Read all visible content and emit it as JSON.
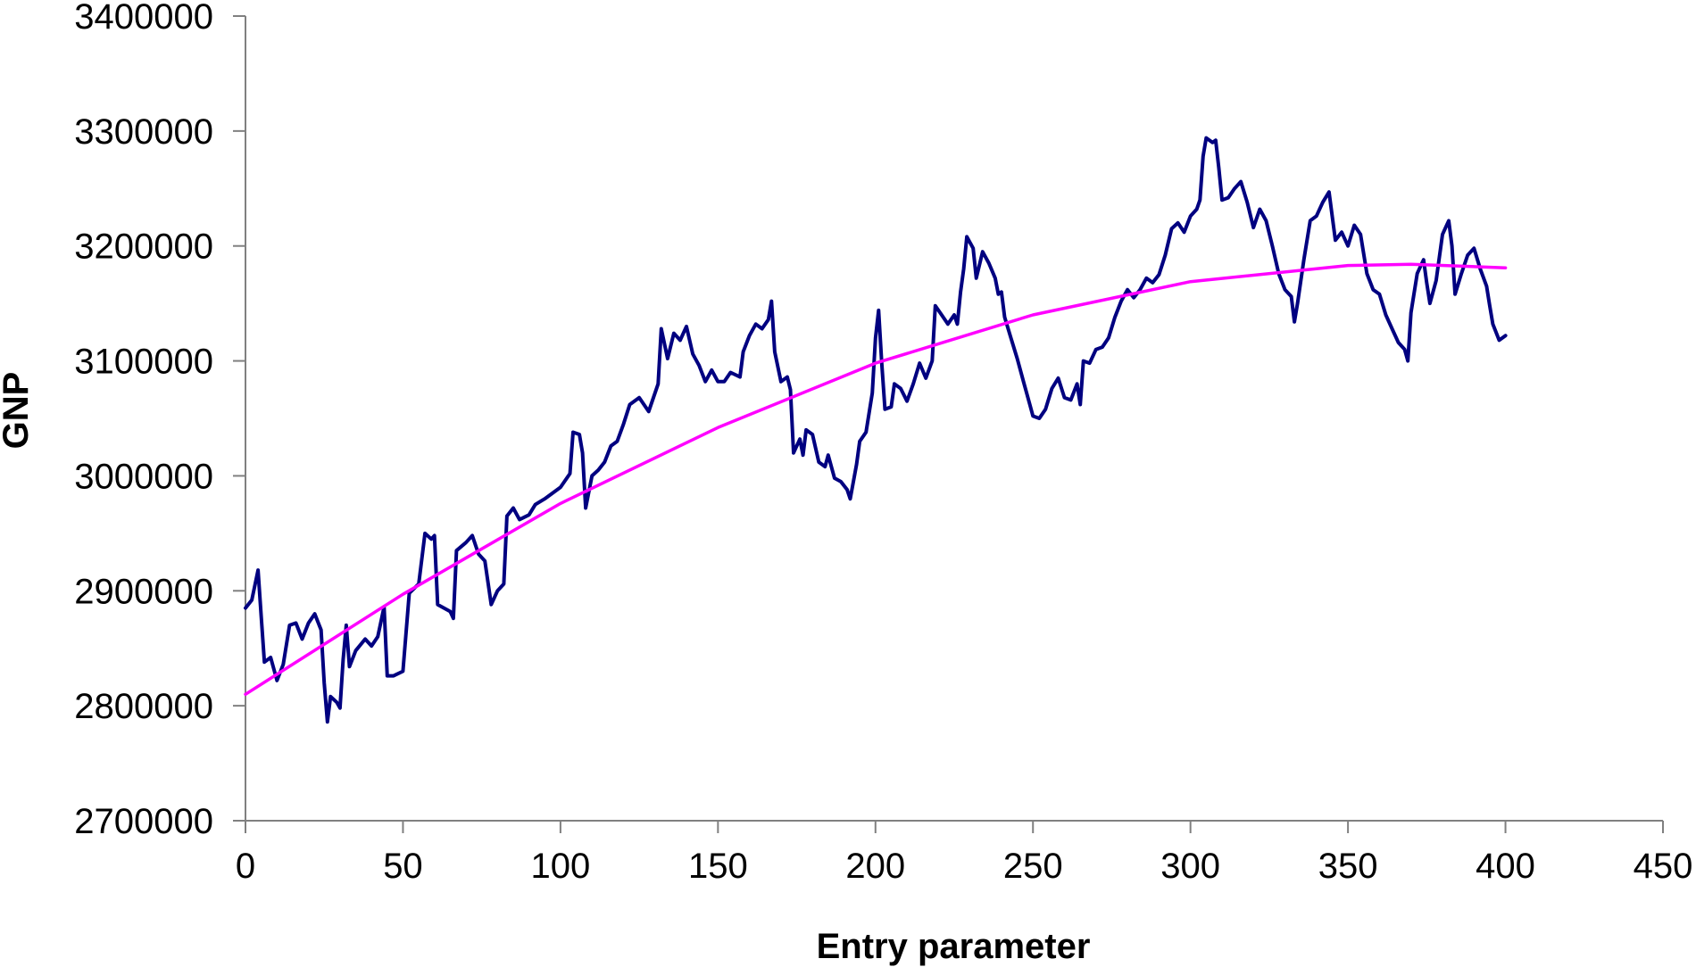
{
  "chart_data": {
    "type": "line",
    "title": "",
    "xlabel": "Entry parameter",
    "ylabel": "GNP",
    "xlim": [
      0,
      450
    ],
    "ylim": [
      2700000,
      3400000
    ],
    "x_ticks": [
      "0",
      "50",
      "100",
      "150",
      "200",
      "250",
      "300",
      "350",
      "400",
      "450"
    ],
    "y_ticks": [
      "2700000",
      "2800000",
      "2900000",
      "3000000",
      "3100000",
      "3200000",
      "3300000",
      "3400000"
    ],
    "grid": false,
    "legend": "none",
    "series": [
      {
        "color": "#000080",
        "style": "line",
        "points": [
          [
            0,
            2885000
          ],
          [
            2,
            2892000
          ],
          [
            4,
            2918000
          ],
          [
            5,
            2878000
          ],
          [
            6,
            2838000
          ],
          [
            8,
            2842000
          ],
          [
            10,
            2822000
          ],
          [
            12,
            2836000
          ],
          [
            14,
            2870000
          ],
          [
            16,
            2872000
          ],
          [
            18,
            2858000
          ],
          [
            20,
            2872000
          ],
          [
            22,
            2880000
          ],
          [
            24,
            2866000
          ],
          [
            25,
            2820000
          ],
          [
            26,
            2786000
          ],
          [
            27,
            2808000
          ],
          [
            29,
            2803000
          ],
          [
            30,
            2798000
          ],
          [
            31,
            2840000
          ],
          [
            32,
            2870000
          ],
          [
            33,
            2834000
          ],
          [
            35,
            2848000
          ],
          [
            38,
            2858000
          ],
          [
            40,
            2852000
          ],
          [
            42,
            2860000
          ],
          [
            44,
            2886000
          ],
          [
            45,
            2826000
          ],
          [
            47,
            2826000
          ],
          [
            50,
            2830000
          ],
          [
            52,
            2898000
          ],
          [
            55,
            2906000
          ],
          [
            57,
            2950000
          ],
          [
            59,
            2945000
          ],
          [
            60,
            2948000
          ],
          [
            61,
            2888000
          ],
          [
            65,
            2882000
          ],
          [
            66,
            2876000
          ],
          [
            67,
            2935000
          ],
          [
            70,
            2942000
          ],
          [
            72,
            2948000
          ],
          [
            74,
            2932000
          ],
          [
            76,
            2926000
          ],
          [
            78,
            2888000
          ],
          [
            80,
            2900000
          ],
          [
            82,
            2906000
          ],
          [
            83,
            2965000
          ],
          [
            85,
            2972000
          ],
          [
            87,
            2962000
          ],
          [
            90,
            2966000
          ],
          [
            92,
            2975000
          ],
          [
            95,
            2980000
          ],
          [
            100,
            2990000
          ],
          [
            103,
            3002000
          ],
          [
            104,
            3038000
          ],
          [
            106,
            3036000
          ],
          [
            107,
            3020000
          ],
          [
            108,
            2972000
          ],
          [
            110,
            3000000
          ],
          [
            112,
            3005000
          ],
          [
            114,
            3012000
          ],
          [
            116,
            3026000
          ],
          [
            118,
            3030000
          ],
          [
            120,
            3045000
          ],
          [
            122,
            3062000
          ],
          [
            125,
            3068000
          ],
          [
            128,
            3056000
          ],
          [
            131,
            3080000
          ],
          [
            132,
            3128000
          ],
          [
            134,
            3102000
          ],
          [
            136,
            3124000
          ],
          [
            138,
            3118000
          ],
          [
            140,
            3130000
          ],
          [
            142,
            3106000
          ],
          [
            144,
            3096000
          ],
          [
            146,
            3082000
          ],
          [
            148,
            3092000
          ],
          [
            150,
            3082000
          ],
          [
            152,
            3082000
          ],
          [
            154,
            3090000
          ],
          [
            157,
            3086000
          ],
          [
            158,
            3108000
          ],
          [
            160,
            3122000
          ],
          [
            162,
            3132000
          ],
          [
            164,
            3128000
          ],
          [
            166,
            3136000
          ],
          [
            167,
            3152000
          ],
          [
            168,
            3108000
          ],
          [
            170,
            3082000
          ],
          [
            172,
            3086000
          ],
          [
            173,
            3075000
          ],
          [
            174,
            3020000
          ],
          [
            176,
            3032000
          ],
          [
            177,
            3018000
          ],
          [
            178,
            3040000
          ],
          [
            180,
            3036000
          ],
          [
            182,
            3012000
          ],
          [
            184,
            3008000
          ],
          [
            185,
            3018000
          ],
          [
            187,
            2998000
          ],
          [
            189,
            2995000
          ],
          [
            191,
            2988000
          ],
          [
            192,
            2980000
          ],
          [
            194,
            3010000
          ],
          [
            195,
            3030000
          ],
          [
            197,
            3038000
          ],
          [
            199,
            3072000
          ],
          [
            200,
            3120000
          ],
          [
            201,
            3144000
          ],
          [
            202,
            3098000
          ],
          [
            203,
            3058000
          ],
          [
            205,
            3060000
          ],
          [
            206,
            3080000
          ],
          [
            208,
            3076000
          ],
          [
            210,
            3065000
          ],
          [
            212,
            3080000
          ],
          [
            214,
            3098000
          ],
          [
            216,
            3085000
          ],
          [
            218,
            3100000
          ],
          [
            219,
            3148000
          ],
          [
            221,
            3140000
          ],
          [
            223,
            3132000
          ],
          [
            225,
            3140000
          ],
          [
            226,
            3132000
          ],
          [
            227,
            3160000
          ],
          [
            228,
            3180000
          ],
          [
            229,
            3208000
          ],
          [
            231,
            3198000
          ],
          [
            232,
            3172000
          ],
          [
            234,
            3195000
          ],
          [
            236,
            3185000
          ],
          [
            238,
            3172000
          ],
          [
            239,
            3158000
          ],
          [
            240,
            3160000
          ],
          [
            241,
            3138000
          ],
          [
            243,
            3120000
          ],
          [
            245,
            3102000
          ],
          [
            247,
            3082000
          ],
          [
            249,
            3062000
          ],
          [
            250,
            3052000
          ],
          [
            252,
            3050000
          ],
          [
            254,
            3058000
          ],
          [
            256,
            3076000
          ],
          [
            258,
            3085000
          ],
          [
            260,
            3068000
          ],
          [
            262,
            3066000
          ],
          [
            264,
            3080000
          ],
          [
            265,
            3062000
          ],
          [
            266,
            3100000
          ],
          [
            268,
            3098000
          ],
          [
            270,
            3110000
          ],
          [
            272,
            3112000
          ],
          [
            274,
            3120000
          ],
          [
            276,
            3138000
          ],
          [
            278,
            3152000
          ],
          [
            280,
            3162000
          ],
          [
            282,
            3155000
          ],
          [
            284,
            3162000
          ],
          [
            286,
            3172000
          ],
          [
            288,
            3168000
          ],
          [
            290,
            3175000
          ],
          [
            292,
            3192000
          ],
          [
            294,
            3215000
          ],
          [
            296,
            3220000
          ],
          [
            298,
            3212000
          ],
          [
            300,
            3226000
          ],
          [
            302,
            3232000
          ],
          [
            303,
            3240000
          ],
          [
            304,
            3278000
          ],
          [
            305,
            3294000
          ],
          [
            307,
            3290000
          ],
          [
            308,
            3292000
          ],
          [
            309,
            3268000
          ],
          [
            310,
            3240000
          ],
          [
            312,
            3242000
          ],
          [
            314,
            3250000
          ],
          [
            316,
            3256000
          ],
          [
            318,
            3238000
          ],
          [
            320,
            3216000
          ],
          [
            322,
            3232000
          ],
          [
            324,
            3222000
          ],
          [
            326,
            3200000
          ],
          [
            328,
            3176000
          ],
          [
            330,
            3162000
          ],
          [
            332,
            3156000
          ],
          [
            333,
            3134000
          ],
          [
            334,
            3150000
          ],
          [
            336,
            3188000
          ],
          [
            338,
            3222000
          ],
          [
            340,
            3226000
          ],
          [
            342,
            3238000
          ],
          [
            344,
            3247000
          ],
          [
            346,
            3205000
          ],
          [
            348,
            3212000
          ],
          [
            350,
            3200000
          ],
          [
            352,
            3218000
          ],
          [
            354,
            3210000
          ],
          [
            356,
            3176000
          ],
          [
            358,
            3162000
          ],
          [
            360,
            3158000
          ],
          [
            362,
            3140000
          ],
          [
            364,
            3128000
          ],
          [
            366,
            3116000
          ],
          [
            368,
            3110000
          ],
          [
            369,
            3100000
          ],
          [
            370,
            3142000
          ],
          [
            372,
            3176000
          ],
          [
            374,
            3188000
          ],
          [
            375,
            3168000
          ],
          [
            376,
            3150000
          ],
          [
            378,
            3170000
          ],
          [
            380,
            3210000
          ],
          [
            382,
            3222000
          ],
          [
            383,
            3200000
          ],
          [
            384,
            3158000
          ],
          [
            386,
            3176000
          ],
          [
            388,
            3192000
          ],
          [
            390,
            3198000
          ],
          [
            392,
            3180000
          ],
          [
            394,
            3165000
          ],
          [
            395,
            3148000
          ],
          [
            396,
            3132000
          ],
          [
            398,
            3118000
          ],
          [
            400,
            3122000
          ]
        ]
      },
      {
        "color": "#ff00ff",
        "style": "line",
        "points": [
          [
            0,
            2810000
          ],
          [
            50,
            2897000
          ],
          [
            100,
            2976000
          ],
          [
            150,
            3042000
          ],
          [
            200,
            3098000
          ],
          [
            250,
            3140000
          ],
          [
            300,
            3169000
          ],
          [
            350,
            3183000
          ],
          [
            370,
            3184000
          ],
          [
            400,
            3181000
          ]
        ]
      }
    ]
  }
}
